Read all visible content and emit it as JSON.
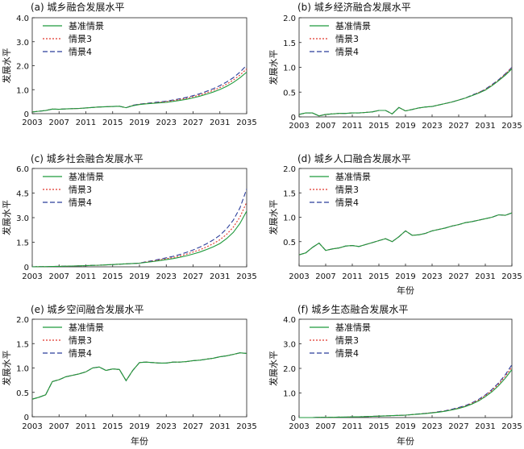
{
  "figure": {
    "legend_labels": [
      "基准情景",
      "情景3",
      "情景4"
    ],
    "colors": {
      "baseline": "#1f9a3c",
      "s3": "#e0362c",
      "s4": "#2a3d9a"
    }
  },
  "chart_data": [
    {
      "type": "line",
      "title": "(a) 城乡融合发展水平",
      "xlabel": "",
      "ylabel": "发展水平",
      "ylim": [
        0,
        4.0
      ],
      "xlim": [
        2003,
        2035
      ],
      "xticks": [
        2003,
        2007,
        2011,
        2015,
        2019,
        2023,
        2027,
        2031,
        2035
      ],
      "yticks": [
        0,
        1.0,
        2.0,
        3.0,
        4.0
      ],
      "ytick_labels": [
        "0",
        "1.0",
        "2.0",
        "3.0",
        "4.0"
      ],
      "legend_position": "top-left",
      "x": [
        2003,
        2004,
        2005,
        2006,
        2007,
        2008,
        2009,
        2010,
        2011,
        2012,
        2013,
        2014,
        2015,
        2016,
        2017,
        2018,
        2019,
        2020,
        2021,
        2022,
        2023,
        2024,
        2025,
        2026,
        2027,
        2028,
        2029,
        2030,
        2031,
        2032,
        2033,
        2034,
        2035
      ],
      "series": [
        {
          "name": "基准情景",
          "style": "solid",
          "values": [
            0.07,
            0.1,
            0.13,
            0.19,
            0.18,
            0.2,
            0.21,
            0.22,
            0.24,
            0.26,
            0.28,
            0.29,
            0.3,
            0.31,
            0.25,
            0.33,
            0.38,
            0.41,
            0.43,
            0.45,
            0.47,
            0.51,
            0.55,
            0.6,
            0.66,
            0.73,
            0.81,
            0.9,
            1.01,
            1.14,
            1.3,
            1.5,
            1.73
          ]
        },
        {
          "name": "情景3",
          "style": "dotted",
          "values": [
            0.07,
            0.1,
            0.13,
            0.19,
            0.18,
            0.2,
            0.21,
            0.22,
            0.24,
            0.26,
            0.28,
            0.29,
            0.3,
            0.31,
            0.25,
            0.34,
            0.39,
            0.42,
            0.44,
            0.47,
            0.5,
            0.54,
            0.59,
            0.64,
            0.71,
            0.78,
            0.87,
            0.97,
            1.09,
            1.23,
            1.4,
            1.61,
            1.87
          ]
        },
        {
          "name": "情景4",
          "style": "dashed",
          "values": [
            0.07,
            0.1,
            0.13,
            0.19,
            0.18,
            0.2,
            0.21,
            0.22,
            0.24,
            0.26,
            0.28,
            0.29,
            0.3,
            0.31,
            0.25,
            0.35,
            0.4,
            0.43,
            0.46,
            0.49,
            0.52,
            0.57,
            0.62,
            0.68,
            0.75,
            0.83,
            0.93,
            1.04,
            1.17,
            1.32,
            1.5,
            1.73,
            2.02
          ]
        }
      ]
    },
    {
      "type": "line",
      "title": "(b) 城乡经济融合发展水平",
      "xlabel": "",
      "ylabel": "发展水平",
      "ylim": [
        0,
        2.0
      ],
      "xlim": [
        2003,
        2035
      ],
      "xticks": [
        2003,
        2007,
        2011,
        2015,
        2019,
        2023,
        2027,
        2031,
        2035
      ],
      "yticks": [
        0,
        0.5,
        1.0,
        1.5,
        2.0
      ],
      "ytick_labels": [
        "0",
        "0.5",
        "1.0",
        "1.5",
        "2.0"
      ],
      "legend_position": "top-left",
      "x": [
        2003,
        2004,
        2005,
        2006,
        2007,
        2008,
        2009,
        2010,
        2011,
        2012,
        2013,
        2014,
        2015,
        2016,
        2017,
        2018,
        2019,
        2020,
        2021,
        2022,
        2023,
        2024,
        2025,
        2026,
        2027,
        2028,
        2029,
        2030,
        2031,
        2032,
        2033,
        2034,
        2035
      ],
      "series": [
        {
          "name": "基准情景",
          "style": "solid",
          "values": [
            0.05,
            0.08,
            0.08,
            0.02,
            0.05,
            0.06,
            0.07,
            0.07,
            0.08,
            0.08,
            0.09,
            0.1,
            0.13,
            0.13,
            0.06,
            0.19,
            0.12,
            0.15,
            0.18,
            0.2,
            0.21,
            0.24,
            0.27,
            0.3,
            0.34,
            0.38,
            0.43,
            0.48,
            0.54,
            0.63,
            0.73,
            0.84,
            0.97
          ]
        },
        {
          "name": "情景3",
          "style": "dotted",
          "values": [
            0.05,
            0.08,
            0.08,
            0.02,
            0.05,
            0.06,
            0.07,
            0.07,
            0.08,
            0.08,
            0.09,
            0.1,
            0.13,
            0.13,
            0.06,
            0.19,
            0.12,
            0.15,
            0.18,
            0.2,
            0.21,
            0.24,
            0.27,
            0.3,
            0.34,
            0.38,
            0.43,
            0.49,
            0.55,
            0.64,
            0.74,
            0.86,
            0.99
          ]
        },
        {
          "name": "情景4",
          "style": "dashed",
          "values": [
            0.05,
            0.08,
            0.08,
            0.02,
            0.05,
            0.06,
            0.07,
            0.07,
            0.08,
            0.08,
            0.09,
            0.1,
            0.13,
            0.13,
            0.06,
            0.19,
            0.12,
            0.15,
            0.18,
            0.2,
            0.21,
            0.24,
            0.27,
            0.3,
            0.34,
            0.38,
            0.44,
            0.49,
            0.56,
            0.65,
            0.75,
            0.87,
            1.0
          ]
        }
      ]
    },
    {
      "type": "line",
      "title": "(c) 城乡社会融合发展水平",
      "xlabel": "",
      "ylabel": "发展水平",
      "ylim": [
        0,
        6.0
      ],
      "xlim": [
        2003,
        2035
      ],
      "xticks": [
        2003,
        2007,
        2011,
        2015,
        2019,
        2023,
        2027,
        2031,
        2035
      ],
      "yticks": [
        0,
        1.5,
        3.0,
        4.5,
        6.0
      ],
      "ytick_labels": [
        "0",
        "1.5",
        "3.0",
        "4.5",
        "6.0"
      ],
      "legend_position": "top-left",
      "x": [
        2003,
        2004,
        2005,
        2006,
        2007,
        2008,
        2009,
        2010,
        2011,
        2012,
        2013,
        2014,
        2015,
        2016,
        2017,
        2018,
        2019,
        2020,
        2021,
        2022,
        2023,
        2024,
        2025,
        2026,
        2027,
        2028,
        2029,
        2030,
        2031,
        2032,
        2033,
        2034,
        2035
      ],
      "series": [
        {
          "name": "基准情景",
          "style": "solid",
          "values": [
            0.0,
            0.01,
            0.01,
            0.02,
            0.03,
            0.04,
            0.05,
            0.06,
            0.07,
            0.09,
            0.1,
            0.12,
            0.14,
            0.16,
            0.18,
            0.2,
            0.22,
            0.27,
            0.32,
            0.38,
            0.44,
            0.5,
            0.58,
            0.67,
            0.78,
            0.9,
            1.05,
            1.22,
            1.42,
            1.72,
            2.1,
            2.65,
            3.4
          ]
        },
        {
          "name": "情景3",
          "style": "dotted",
          "values": [
            0.0,
            0.01,
            0.01,
            0.02,
            0.03,
            0.04,
            0.05,
            0.06,
            0.07,
            0.09,
            0.1,
            0.12,
            0.14,
            0.16,
            0.18,
            0.2,
            0.22,
            0.29,
            0.35,
            0.42,
            0.49,
            0.57,
            0.66,
            0.77,
            0.9,
            1.04,
            1.21,
            1.41,
            1.65,
            1.98,
            2.42,
            3.04,
            3.95
          ]
        },
        {
          "name": "情景4",
          "style": "dashed",
          "values": [
            0.0,
            0.01,
            0.01,
            0.02,
            0.03,
            0.04,
            0.05,
            0.06,
            0.07,
            0.09,
            0.1,
            0.12,
            0.14,
            0.16,
            0.18,
            0.2,
            0.22,
            0.31,
            0.38,
            0.46,
            0.55,
            0.64,
            0.75,
            0.88,
            1.03,
            1.2,
            1.4,
            1.64,
            1.93,
            2.32,
            2.85,
            3.6,
            4.75
          ]
        }
      ]
    },
    {
      "type": "line",
      "title": "(d) 城乡人口融合发展水平",
      "xlabel": "年份",
      "ylabel": "发展水平",
      "ylim": [
        0,
        2.0
      ],
      "xlim": [
        2003,
        2035
      ],
      "xticks": [
        2003,
        2007,
        2011,
        2015,
        2019,
        2023,
        2027,
        2031,
        2035
      ],
      "yticks": [
        0.5,
        1.0,
        1.5,
        2.0
      ],
      "ytick_labels": [
        "0.5",
        "1.0",
        "1.5",
        "2.0"
      ],
      "legend_position": "top-left",
      "x": [
        2003,
        2004,
        2005,
        2006,
        2007,
        2008,
        2009,
        2010,
        2011,
        2012,
        2013,
        2014,
        2015,
        2016,
        2017,
        2018,
        2019,
        2020,
        2021,
        2022,
        2023,
        2024,
        2025,
        2026,
        2027,
        2028,
        2029,
        2030,
        2031,
        2032,
        2033,
        2034,
        2035
      ],
      "series": [
        {
          "name": "基准情景",
          "style": "solid",
          "values": [
            0.23,
            0.27,
            0.38,
            0.47,
            0.32,
            0.35,
            0.37,
            0.41,
            0.42,
            0.4,
            0.44,
            0.48,
            0.52,
            0.56,
            0.5,
            0.6,
            0.72,
            0.63,
            0.64,
            0.67,
            0.72,
            0.75,
            0.78,
            0.82,
            0.85,
            0.89,
            0.91,
            0.94,
            0.97,
            1.0,
            1.05,
            1.04,
            1.09
          ]
        },
        {
          "name": "情景3",
          "style": "dotted",
          "values": [
            0.23,
            0.27,
            0.38,
            0.47,
            0.32,
            0.35,
            0.37,
            0.41,
            0.42,
            0.4,
            0.44,
            0.48,
            0.52,
            0.56,
            0.5,
            0.6,
            0.72,
            0.63,
            0.64,
            0.67,
            0.72,
            0.75,
            0.78,
            0.82,
            0.85,
            0.89,
            0.91,
            0.94,
            0.97,
            1.0,
            1.05,
            1.04,
            1.09
          ]
        },
        {
          "name": "情景4",
          "style": "dashed",
          "values": [
            0.23,
            0.27,
            0.38,
            0.47,
            0.32,
            0.35,
            0.37,
            0.41,
            0.42,
            0.4,
            0.44,
            0.48,
            0.52,
            0.56,
            0.5,
            0.6,
            0.72,
            0.63,
            0.64,
            0.67,
            0.72,
            0.75,
            0.78,
            0.82,
            0.85,
            0.89,
            0.91,
            0.94,
            0.97,
            1.0,
            1.05,
            1.04,
            1.09
          ]
        }
      ]
    },
    {
      "type": "line",
      "title": "(e) 城乡空间融合发展水平",
      "xlabel": "年份",
      "ylabel": "发展水平",
      "ylim": [
        0,
        2.0
      ],
      "xlim": [
        2003,
        2035
      ],
      "xticks": [
        2003,
        2007,
        2011,
        2015,
        2019,
        2023,
        2027,
        2031,
        2035
      ],
      "yticks": [
        0,
        0.5,
        1.0,
        1.5,
        2.0
      ],
      "ytick_labels": [
        "0",
        "0.5",
        "1.0",
        "1.5",
        "2.0"
      ],
      "legend_position": "top-left",
      "x": [
        2003,
        2004,
        2005,
        2006,
        2007,
        2008,
        2009,
        2010,
        2011,
        2012,
        2013,
        2014,
        2015,
        2016,
        2017,
        2018,
        2019,
        2020,
        2021,
        2022,
        2023,
        2024,
        2025,
        2026,
        2027,
        2028,
        2029,
        2030,
        2031,
        2032,
        2033,
        2034,
        2035
      ],
      "series": [
        {
          "name": "基准情景",
          "style": "solid",
          "values": [
            0.36,
            0.4,
            0.45,
            0.72,
            0.76,
            0.82,
            0.85,
            0.88,
            0.92,
            1.0,
            1.02,
            0.95,
            0.98,
            0.97,
            0.74,
            0.95,
            1.11,
            1.12,
            1.11,
            1.1,
            1.1,
            1.12,
            1.12,
            1.13,
            1.15,
            1.16,
            1.18,
            1.2,
            1.23,
            1.25,
            1.28,
            1.31,
            1.3
          ]
        },
        {
          "name": "情景3",
          "style": "dotted",
          "values": [
            0.36,
            0.4,
            0.45,
            0.72,
            0.76,
            0.82,
            0.85,
            0.88,
            0.92,
            1.0,
            1.02,
            0.95,
            0.98,
            0.97,
            0.74,
            0.95,
            1.11,
            1.12,
            1.11,
            1.1,
            1.1,
            1.12,
            1.12,
            1.13,
            1.15,
            1.16,
            1.18,
            1.2,
            1.23,
            1.25,
            1.28,
            1.31,
            1.3
          ]
        },
        {
          "name": "情景4",
          "style": "dashed",
          "values": [
            0.36,
            0.4,
            0.45,
            0.72,
            0.76,
            0.82,
            0.85,
            0.88,
            0.92,
            1.0,
            1.02,
            0.95,
            0.98,
            0.97,
            0.74,
            0.95,
            1.11,
            1.12,
            1.11,
            1.1,
            1.1,
            1.12,
            1.12,
            1.13,
            1.15,
            1.16,
            1.18,
            1.2,
            1.23,
            1.25,
            1.28,
            1.31,
            1.3
          ]
        }
      ]
    },
    {
      "type": "line",
      "title": "(f) 城乡生态融合发展水平",
      "xlabel": "年份",
      "ylabel": "发展水平",
      "ylim": [
        0,
        4.0
      ],
      "xlim": [
        2003,
        2035
      ],
      "xticks": [
        2003,
        2007,
        2011,
        2015,
        2019,
        2023,
        2027,
        2031,
        2035
      ],
      "yticks": [
        0,
        1.0,
        2.0,
        3.0,
        4.0
      ],
      "ytick_labels": [
        "0",
        "1.0",
        "2.0",
        "3.0",
        "4.0"
      ],
      "legend_position": "top-left",
      "x": [
        2003,
        2004,
        2005,
        2006,
        2007,
        2008,
        2009,
        2010,
        2011,
        2012,
        2013,
        2014,
        2015,
        2016,
        2017,
        2018,
        2019,
        2020,
        2021,
        2022,
        2023,
        2024,
        2025,
        2026,
        2027,
        2028,
        2029,
        2030,
        2031,
        2032,
        2033,
        2034,
        2035
      ],
      "series": [
        {
          "name": "基准情景",
          "style": "solid",
          "values": [
            0.0,
            0.0,
            0.0,
            0.01,
            0.01,
            0.01,
            0.02,
            0.02,
            0.03,
            0.03,
            0.04,
            0.05,
            0.06,
            0.07,
            0.08,
            0.09,
            0.1,
            0.12,
            0.14,
            0.16,
            0.19,
            0.22,
            0.26,
            0.31,
            0.37,
            0.45,
            0.55,
            0.68,
            0.85,
            1.05,
            1.3,
            1.6,
            1.95
          ]
        },
        {
          "name": "情景3",
          "style": "dotted",
          "values": [
            0.0,
            0.0,
            0.0,
            0.01,
            0.01,
            0.01,
            0.02,
            0.02,
            0.03,
            0.03,
            0.04,
            0.05,
            0.06,
            0.07,
            0.08,
            0.09,
            0.1,
            0.12,
            0.14,
            0.17,
            0.2,
            0.23,
            0.27,
            0.32,
            0.39,
            0.47,
            0.58,
            0.71,
            0.89,
            1.1,
            1.36,
            1.68,
            2.05
          ]
        },
        {
          "name": "情景4",
          "style": "dashed",
          "values": [
            0.0,
            0.0,
            0.0,
            0.01,
            0.01,
            0.01,
            0.02,
            0.02,
            0.03,
            0.03,
            0.04,
            0.05,
            0.06,
            0.07,
            0.08,
            0.09,
            0.1,
            0.12,
            0.15,
            0.17,
            0.2,
            0.24,
            0.28,
            0.34,
            0.41,
            0.49,
            0.6,
            0.74,
            0.92,
            1.14,
            1.41,
            1.74,
            2.15
          ]
        }
      ]
    }
  ]
}
